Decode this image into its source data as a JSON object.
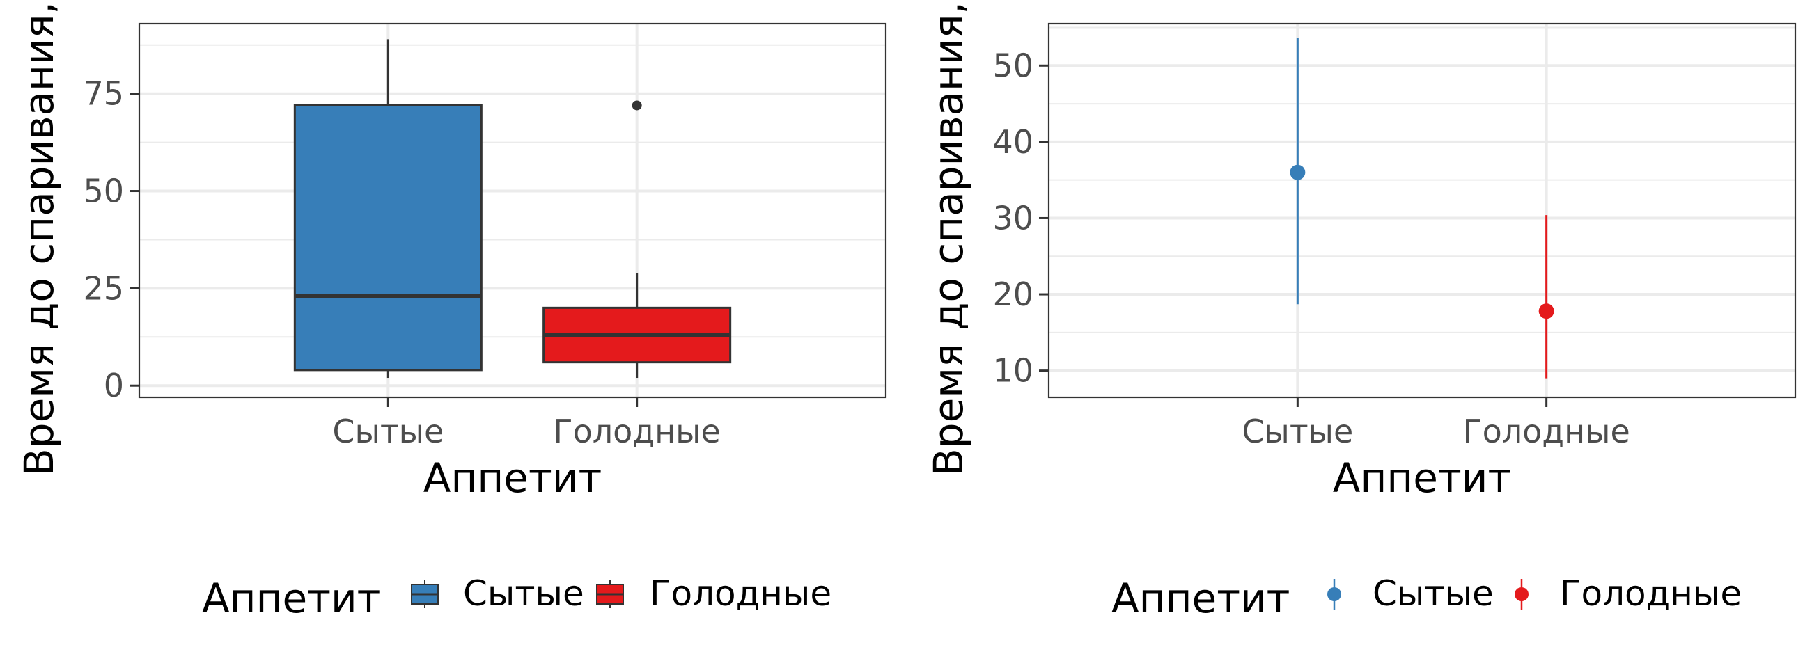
{
  "chart_data": [
    {
      "type": "box",
      "ylabel": "Время до спаривания, мин",
      "xlabel": "Аппетит",
      "categories": [
        "Сытые",
        "Голодные"
      ],
      "ylim": [
        -3,
        93
      ],
      "yticks": [
        0,
        25,
        50,
        75
      ],
      "grid": true,
      "legend_position": "bottom",
      "legend_title": "Аппетит",
      "series": [
        {
          "name": "Сытые",
          "color": "#377EB8",
          "whisker_low": 2,
          "q1": 4,
          "median": 23,
          "q3": 72,
          "whisker_high": 89,
          "outliers": []
        },
        {
          "name": "Голодные",
          "color": "#E41A1C",
          "whisker_low": 2,
          "q1": 6,
          "median": 13,
          "q3": 20,
          "whisker_high": 29,
          "outliers": [
            72
          ]
        }
      ]
    },
    {
      "type": "pointrange",
      "ylabel": "Время до спаривания, мин",
      "xlabel": "Аппетит",
      "categories": [
        "Сытые",
        "Голодные"
      ],
      "ylim": [
        6.5,
        55.5
      ],
      "yticks": [
        10,
        20,
        30,
        40,
        50
      ],
      "grid": true,
      "legend_position": "bottom",
      "legend_title": "Аппетит",
      "series": [
        {
          "name": "Сытые",
          "color": "#377EB8",
          "mean": 36,
          "lower": 18.7,
          "upper": 53.6
        },
        {
          "name": "Голодные",
          "color": "#E41A1C",
          "mean": 17.8,
          "lower": 9,
          "upper": 30.4
        }
      ]
    }
  ]
}
